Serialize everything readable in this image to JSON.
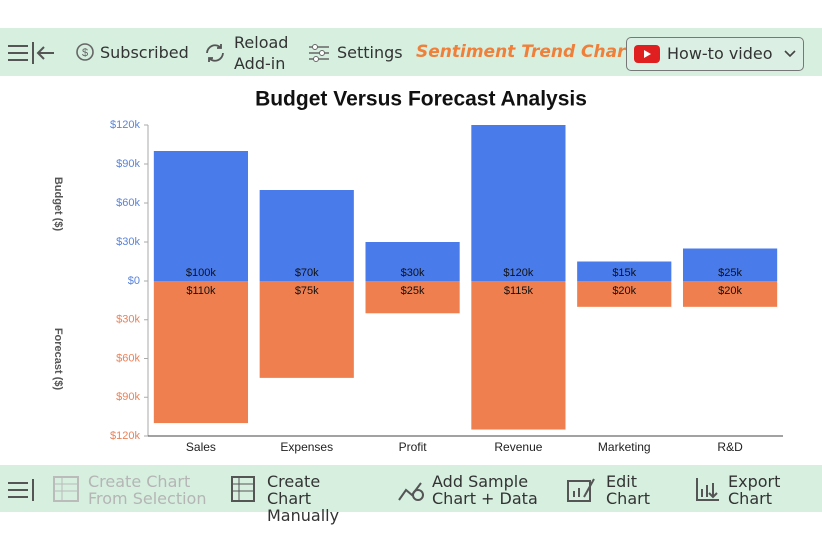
{
  "toolbar": {
    "items": [
      "Subscribed",
      "Reload Add-in",
      "Settings"
    ],
    "brand": "Sentiment Trend Chart",
    "video": "How-to video"
  },
  "chart_data": {
    "type": "bar",
    "title": "Budget Versus Forecast Analysis",
    "categories": [
      "Sales",
      "Expenses",
      "Profit",
      "Revenue",
      "Marketing",
      "R&D"
    ],
    "series": [
      {
        "name": "Budget ($)",
        "color": "#4a7bea",
        "values": [
          100000,
          70000,
          30000,
          120000,
          15000,
          25000
        ],
        "value_labels": [
          "$100k",
          "$70k",
          "$30k",
          "$120k",
          "$15k",
          "$25k"
        ]
      },
      {
        "name": "Forecast ($)",
        "color": "#f07f50",
        "axis": "y2",
        "values": [
          110000,
          75000,
          25000,
          115000,
          20000,
          20000
        ],
        "value_labels": [
          "$110k",
          "$75k",
          "$25k",
          "$115k",
          "$20k",
          "$20k"
        ]
      }
    ],
    "ylim": [
      0,
      120000
    ],
    "yticks": [
      {
        "value": 0,
        "label": "$0"
      },
      {
        "value": 30000,
        "label": "$30k"
      },
      {
        "value": 60000,
        "label": "$60k"
      },
      {
        "value": 90000,
        "label": "$90k"
      },
      {
        "value": 120000,
        "label": "$120k"
      }
    ],
    "y2lim": [
      0,
      120000
    ],
    "y2ticks": [
      {
        "value": 30000,
        "label": "$30k"
      },
      {
        "value": 60000,
        "label": "$60k"
      },
      {
        "value": 90000,
        "label": "$90k"
      },
      {
        "value": 120000,
        "label": "$120k"
      }
    ],
    "y2reversed": true,
    "ytick_color": "#5b84d8",
    "y2tick_color": "#e8825a",
    "grid": false
  },
  "bottom_toolbar": {
    "items": [
      "Create Chart From Selection",
      "Create Chart Manually",
      "Add Sample Chart + Data",
      "Edit Chart",
      "Export Chart"
    ],
    "disabled": [
      true,
      false,
      false,
      false,
      false
    ]
  }
}
